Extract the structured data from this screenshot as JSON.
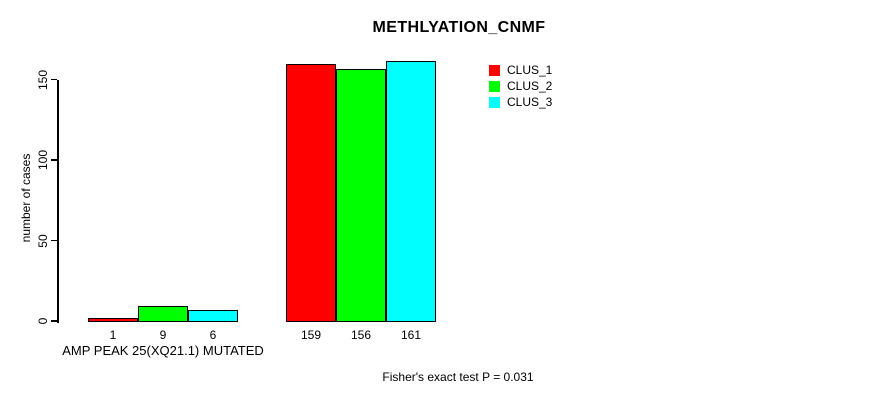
{
  "chart_data": {
    "type": "bar",
    "title": "METHLYATION_CNMF",
    "ylabel": "number of cases",
    "xlabel": "",
    "categories": [
      "AMP PEAK 25(XQ21.1) MUTATED",
      ""
    ],
    "series": [
      {
        "name": "CLUS_1",
        "color": "#ff0000",
        "values": [
          1,
          159
        ]
      },
      {
        "name": "CLUS_2",
        "color": "#00ff00",
        "values": [
          9,
          156
        ]
      },
      {
        "name": "CLUS_3",
        "color": "#00ffff",
        "values": [
          6,
          161
        ]
      }
    ],
    "bar_value_labels": [
      [
        "1",
        "9",
        "6"
      ],
      [
        "159",
        "156",
        "161"
      ]
    ],
    "yticks": [
      0,
      50,
      100,
      150
    ],
    "ylim": [
      0,
      165
    ],
    "grid": false,
    "legend_position": "top-right",
    "annotation": "Fisher's exact test P = 0.031"
  }
}
